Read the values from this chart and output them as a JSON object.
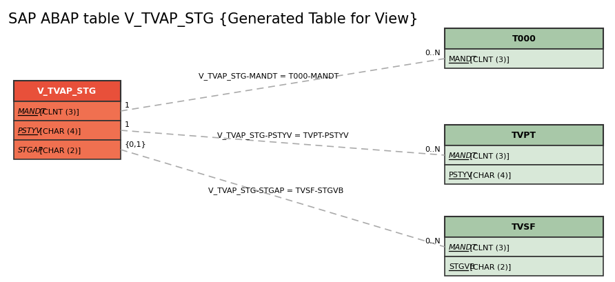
{
  "title": "SAP ABAP table V_TVAP_STG {Generated Table for View}",
  "title_fontsize": 15,
  "bg_color": "#ffffff",
  "main_table": {
    "name": "V_TVAP_STG",
    "header_color": "#e8503a",
    "header_text_color": "#ffffff",
    "row_color": "#f07050",
    "border_color": "#333333",
    "fields": [
      {
        "name": "MANDT",
        "type": " [CLNT (3)]",
        "italic": true,
        "underline": true
      },
      {
        "name": "PSTYV",
        "type": " [CHAR (4)]",
        "italic": true,
        "underline": true
      },
      {
        "name": "STGAP",
        "type": " [CHAR (2)]",
        "italic": true,
        "underline": false
      }
    ]
  },
  "related_tables": [
    {
      "id": "T000",
      "header_color": "#a8c8a8",
      "row_color": "#d8e8d8",
      "border_color": "#333333",
      "fields": [
        {
          "name": "MANDT",
          "type": " [CLNT (3)]",
          "italic": false,
          "underline": true
        }
      ]
    },
    {
      "id": "TVPT",
      "header_color": "#a8c8a8",
      "row_color": "#d8e8d8",
      "border_color": "#333333",
      "fields": [
        {
          "name": "MANDT",
          "type": " [CLNT (3)]",
          "italic": true,
          "underline": true
        },
        {
          "name": "PSTYV",
          "type": " [CHAR (4)]",
          "italic": false,
          "underline": true
        }
      ]
    },
    {
      "id": "TVSF",
      "header_color": "#a8c8a8",
      "row_color": "#d8e8d8",
      "border_color": "#333333",
      "fields": [
        {
          "name": "MANDT",
          "type": " [CLNT (3)]",
          "italic": true,
          "underline": true
        },
        {
          "name": "STGVB",
          "type": " [CHAR (2)]",
          "italic": false,
          "underline": true
        }
      ]
    }
  ],
  "relationships": [
    {
      "label": "V_TVAP_STG-MANDT = T000-MANDT",
      "from_card": "1",
      "to_card": "0..N",
      "target_table": "T000"
    },
    {
      "label": "V_TVAP_STG-PSTYV = TVPT-PSTYV",
      "from_card": "1",
      "to_card": "0..N",
      "target_table": "TVPT"
    },
    {
      "label": "V_TVAP_STG-STGAP = TVSF-STGVB",
      "from_card": "{0,1}",
      "to_card": "0..N",
      "target_table": "TVSF"
    }
  ]
}
